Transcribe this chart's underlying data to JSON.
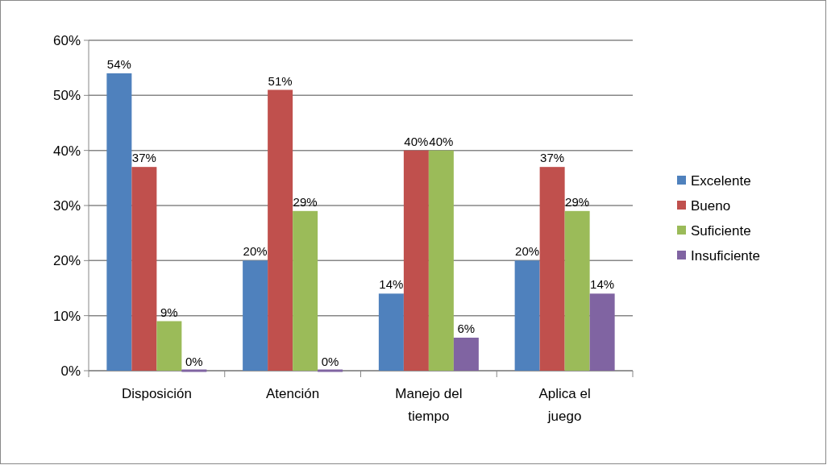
{
  "chart_data": {
    "type": "bar",
    "categories": [
      "Disposición",
      "Atención",
      "Manejo del tiempo",
      "Aplica el juego"
    ],
    "series": [
      {
        "name": "Excelente",
        "color": "#4f81bd",
        "values": [
          54,
          20,
          14,
          20
        ],
        "value_labels": [
          "54%",
          "20%",
          "14%",
          "20%"
        ]
      },
      {
        "name": "Bueno",
        "color": "#c0504d",
        "values": [
          37,
          51,
          40,
          37
        ],
        "value_labels": [
          "37%",
          "51%",
          "40%",
          "37%"
        ]
      },
      {
        "name": "Suficiente",
        "color": "#9bbb59",
        "values": [
          9,
          29,
          40,
          29
        ],
        "value_labels": [
          "9%",
          "29%",
          "40%",
          "29%"
        ]
      },
      {
        "name": "Insuficiente",
        "color": "#8064a2",
        "values": [
          0,
          0,
          6,
          14
        ],
        "value_labels": [
          "0%",
          "0%",
          "6%",
          "14%"
        ]
      }
    ],
    "ylim": [
      0,
      60
    ],
    "yticks": [
      {
        "value": 0,
        "label": "0%"
      },
      {
        "value": 10,
        "label": "10%"
      },
      {
        "value": 20,
        "label": "20%"
      },
      {
        "value": 30,
        "label": "30%"
      },
      {
        "value": 40,
        "label": "40%"
      },
      {
        "value": 50,
        "label": "50%"
      },
      {
        "value": 60,
        "label": "60%"
      }
    ],
    "grid": "y",
    "legend": "right"
  }
}
